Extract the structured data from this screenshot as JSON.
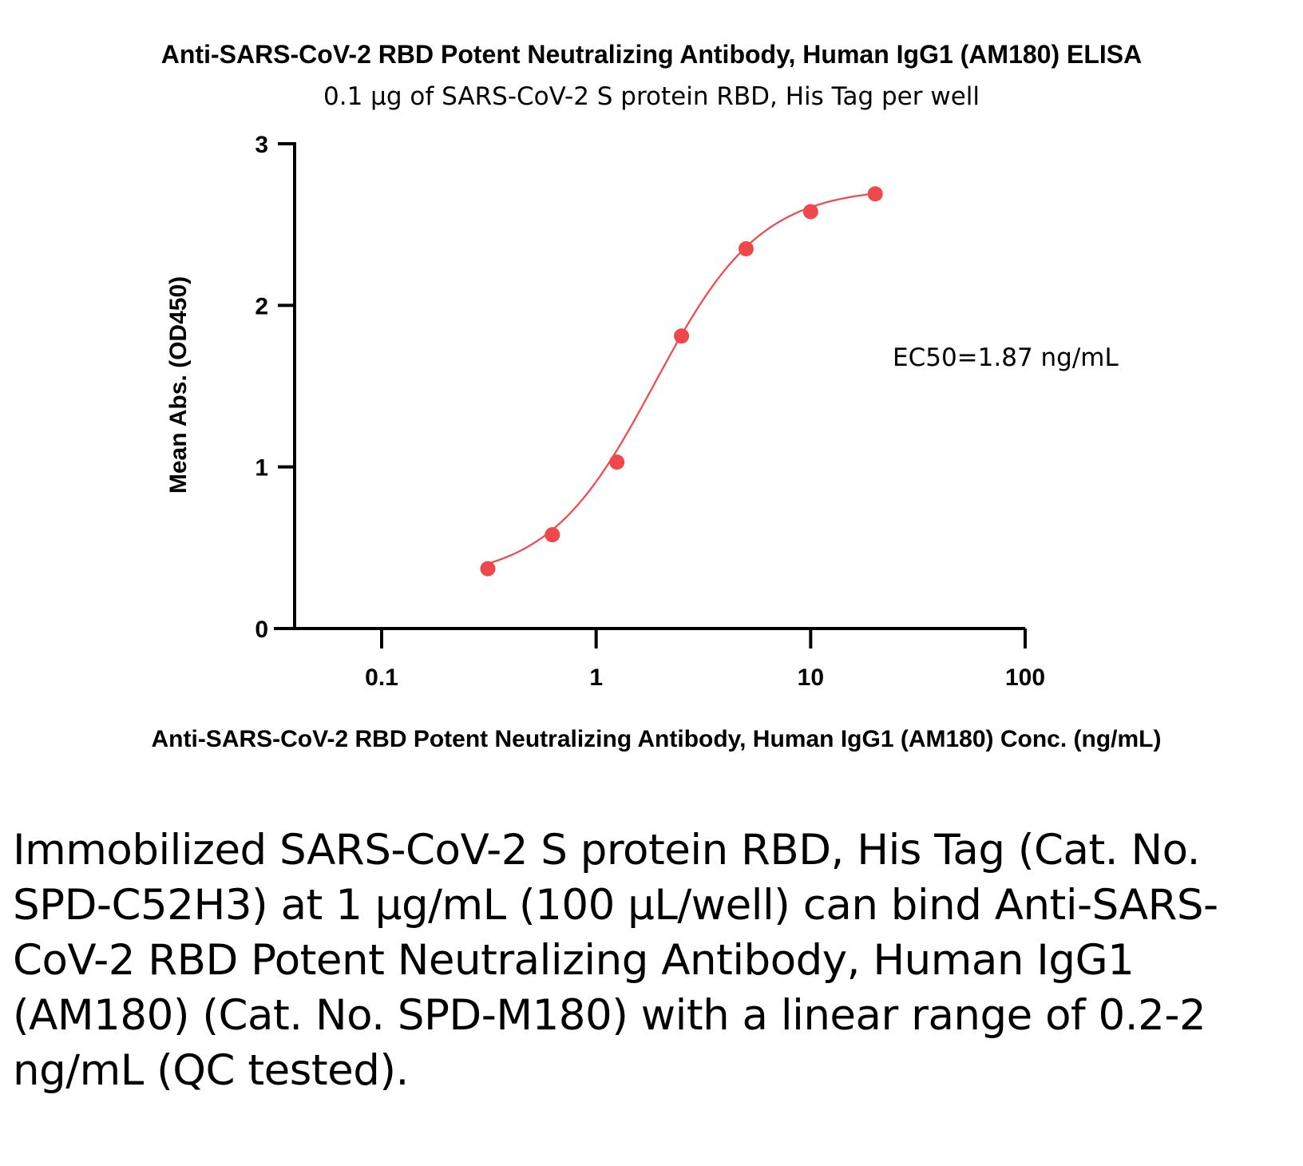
{
  "chart_data": {
    "type": "scatter",
    "title": "Anti-SARS-CoV-2 RBD Potent Neutralizing Antibody, Human IgG1 (AM180) ELISA",
    "subtitle": "0.1 µg of SARS-CoV-2 S protein RBD, His Tag per well",
    "xlabel": "Anti-SARS-CoV-2 RBD Potent Neutralizing Antibody, Human IgG1 (AM180) Conc. (ng/mL)",
    "ylabel": "Mean Abs. (OD450)",
    "x_scale": "log",
    "xlim": [
      0.04,
      100
    ],
    "ylim": [
      0,
      3
    ],
    "x_ticks": [
      0.1,
      1,
      10,
      100
    ],
    "x_tick_labels": [
      "0.1",
      "1",
      "10",
      "100"
    ],
    "y_ticks": [
      0,
      1,
      2,
      3
    ],
    "y_tick_labels": [
      "0",
      "1",
      "2",
      "3"
    ],
    "grid": false,
    "series": [
      {
        "color": "#f0474a",
        "x": [
          0.3125,
          0.625,
          1.25,
          2.5,
          5,
          10,
          20
        ],
        "y": [
          0.37,
          0.58,
          1.03,
          1.81,
          2.35,
          2.58,
          2.69
        ]
      }
    ],
    "fit_curve": {
      "model": "4PL",
      "bottom": 0.3,
      "top": 2.73,
      "ec50": 1.87,
      "hill": 1.75,
      "x_range": [
        0.3125,
        20
      ]
    },
    "annotation": "EC50=1.87 ng/mL"
  },
  "caption": "Immobilized SARS-CoV-2 S protein RBD, His Tag (Cat. No. SPD-C52H3) at 1 μg/mL (100 μL/well) can bind Anti-SARS-CoV-2 RBD Potent Neutralizing Antibody, Human IgG1 (AM180) (Cat. No. SPD-M180) with a linear range of 0.2-2 ng/mL (QC tested)."
}
